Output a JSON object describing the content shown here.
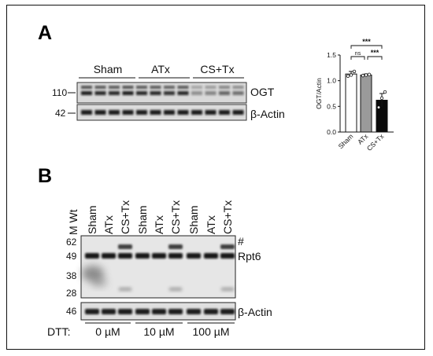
{
  "panelA": {
    "letter": "A",
    "groups": [
      "Sham",
      "ATx",
      "CS+Tx"
    ],
    "mw_top": "110",
    "mw_bottom": "42",
    "band_top_label": "OGT",
    "band_bottom_label": "β-Actin"
  },
  "panelB": {
    "letter": "B",
    "mw_header": "M Wt",
    "lanes": [
      "Sham",
      "ATx",
      "CS+Tx",
      "Sham",
      "ATx",
      "CS+Tx",
      "Sham",
      "ATx",
      "CS+Tx"
    ],
    "mw_marks": [
      "62",
      "49",
      "38",
      "28"
    ],
    "mw_actin": "46",
    "hash_label": "#",
    "band_label": "Rpt6",
    "actin_label": "β-Actin",
    "dtt_label": "DTT:",
    "dtt_doses": [
      "0 µM",
      "10 µM",
      "100 µM"
    ]
  },
  "chart_data": {
    "type": "bar",
    "categories": [
      "Sham",
      "ATx",
      "CS+Tx"
    ],
    "values": [
      1.13,
      1.11,
      0.62
    ],
    "errors": [
      0.05,
      0.02,
      0.13
    ],
    "points": [
      [
        1.09,
        1.11,
        1.18
      ],
      [
        1.1,
        1.11,
        1.12
      ],
      [
        0.48,
        0.66,
        0.78
      ]
    ],
    "bar_colors": [
      "#ffffff",
      "#9a9a9a",
      "#0a0a0a"
    ],
    "xlabel": "",
    "ylabel": "OGT/Actin",
    "ylim": [
      0.0,
      1.5
    ],
    "yticks": [
      "0.0",
      "0.5",
      "1.0",
      "1.5"
    ],
    "significance": [
      {
        "pair": [
          "Sham",
          "CS+Tx"
        ],
        "label": "***"
      },
      {
        "pair": [
          "Sham",
          "ATx"
        ],
        "label": "ns"
      },
      {
        "pair": [
          "ATx",
          "CS+Tx"
        ],
        "label": "***"
      }
    ]
  }
}
